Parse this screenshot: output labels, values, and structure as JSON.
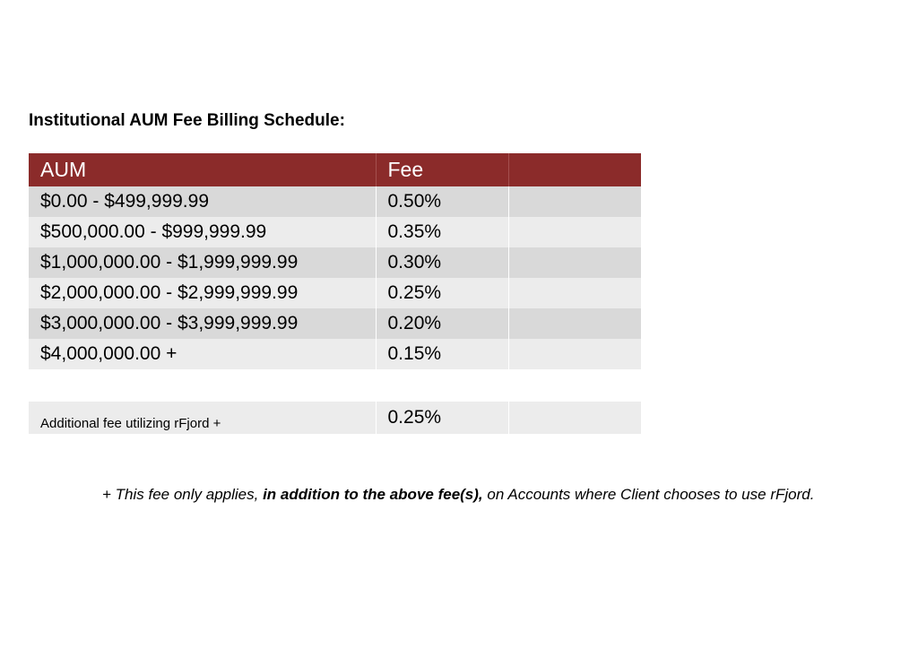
{
  "document": {
    "heading": "Institutional AUM Fee Billing Schedule:",
    "table": {
      "headers": [
        "AUM",
        "Fee",
        ""
      ],
      "rows": [
        {
          "aum": "$0.00 - $499,999.99",
          "fee": "0.50%"
        },
        {
          "aum": "$500,000.00 - $999,999.99",
          "fee": "0.35%"
        },
        {
          "aum": "$1,000,000.00 - $1,999,999.99",
          "fee": "0.30%"
        },
        {
          "aum": "$2,000,000.00 - $2,999,999.99",
          "fee": "0.25%"
        },
        {
          "aum": "$3,000,000.00 - $3,999,999.99",
          "fee": "0.20%"
        },
        {
          "aum": "$4,000,000.00 +",
          "fee": "0.15%"
        }
      ],
      "additional": {
        "label": "Additional fee utilizing rFjord +",
        "fee": "0.25%"
      }
    },
    "footnote": {
      "part1": "+ This fee only applies, ",
      "bold": "in addition to the above fee(s),",
      "part2": " on Accounts where Client chooses to use rFjord."
    }
  },
  "colors": {
    "header_bg": "#8b2b2a",
    "row_dark": "#d9d9d9",
    "row_light": "#ececec"
  }
}
